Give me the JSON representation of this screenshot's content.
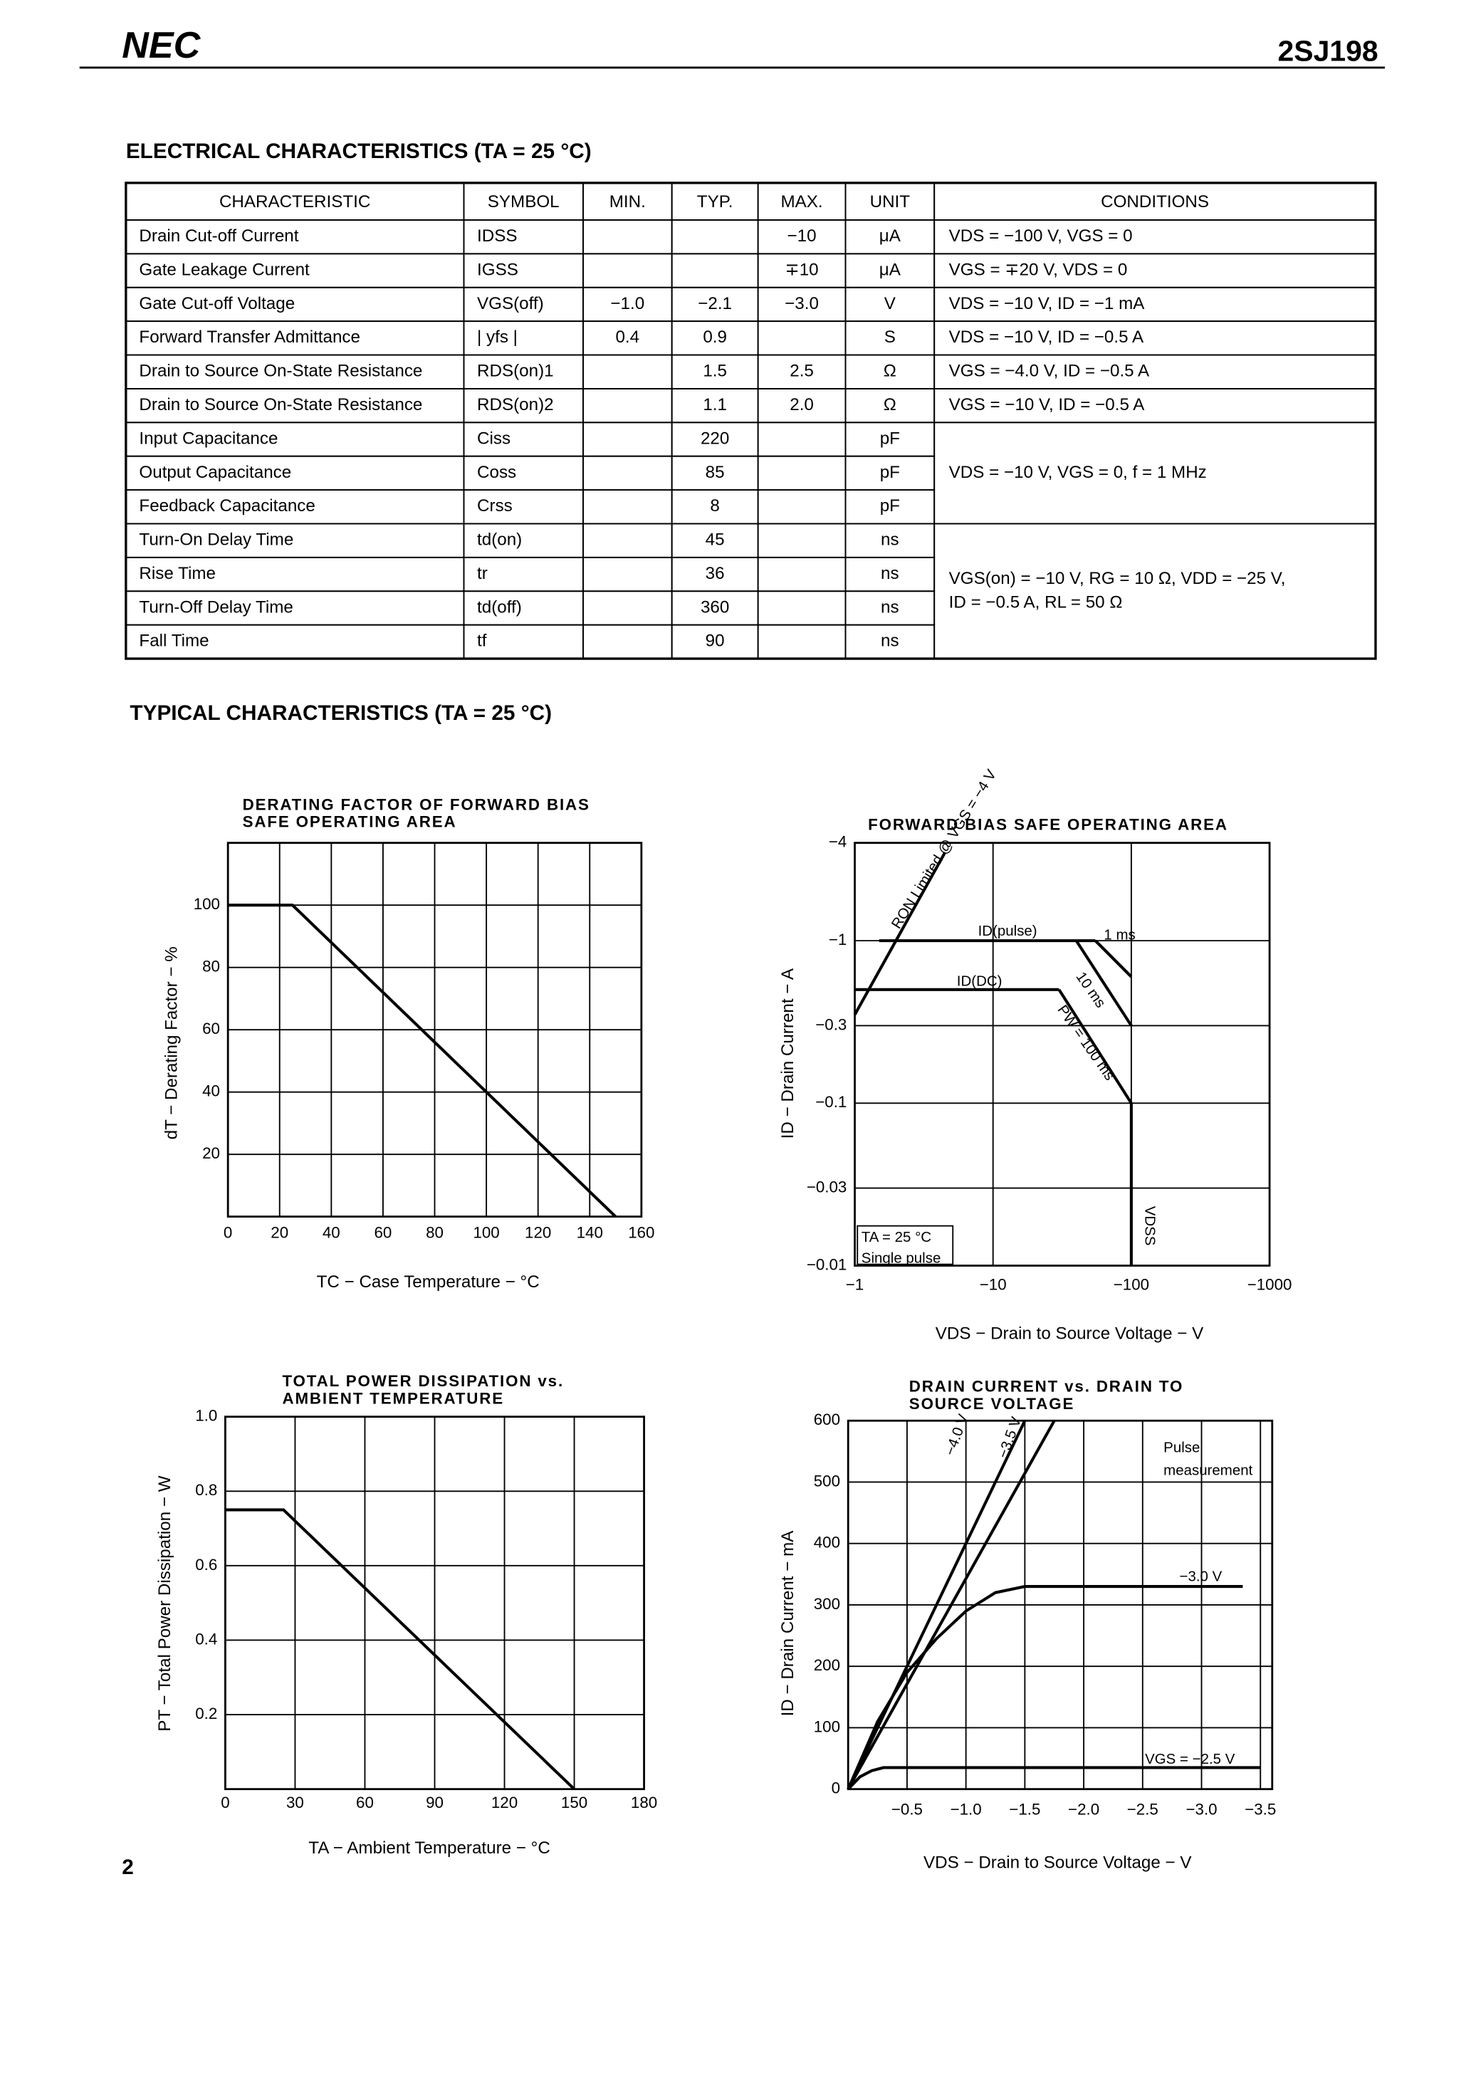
{
  "header": {
    "logo": "NEC",
    "part": "2SJ198"
  },
  "electrical": {
    "title": "ELECTRICAL CHARACTERISTICS (TA = 25 °C)",
    "columns": [
      "CHARACTERISTIC",
      "SYMBOL",
      "MIN.",
      "TYP.",
      "MAX.",
      "UNIT",
      "CONDITIONS"
    ],
    "rows": [
      [
        "Drain Cut-off Current",
        "IDSS",
        null,
        null,
        "−10",
        "μA"
      ],
      [
        "Gate Leakage Current",
        "IGSS",
        null,
        null,
        "∓10",
        "μA"
      ],
      [
        "Gate Cut-off Voltage",
        "VGS(off)",
        "−1.0",
        "−2.1",
        "−3.0",
        "V"
      ],
      [
        "Forward Transfer Admittance",
        "| yfs |",
        "0.4",
        "0.9",
        null,
        "S"
      ],
      [
        "Drain to Source On-State Resistance",
        "RDS(on)1",
        null,
        "1.5",
        "2.5",
        "Ω"
      ],
      [
        "Drain to Source On-State Resistance",
        "RDS(on)2",
        null,
        "1.1",
        "2.0",
        "Ω"
      ],
      [
        "Input Capacitance",
        "Ciss",
        null,
        "220",
        null,
        "pF"
      ],
      [
        "Output Capacitance",
        "Coss",
        null,
        "85",
        null,
        "pF"
      ],
      [
        "Feedback Capacitance",
        "Crss",
        null,
        "8",
        null,
        "pF"
      ],
      [
        "Turn-On Delay Time",
        "td(on)",
        null,
        "45",
        null,
        "ns"
      ],
      [
        "Rise Time",
        "tr",
        null,
        "36",
        null,
        "ns"
      ],
      [
        "Turn-Off Delay Time",
        "td(off)",
        null,
        "360",
        null,
        "ns"
      ],
      [
        "Fall Time",
        "tf",
        null,
        "90",
        null,
        "ns"
      ]
    ],
    "conditions": [
      "VDS = −100 V, VGS = 0",
      "VGS = ∓20 V, VDS = 0",
      "VDS = −10 V, ID = −1 mA",
      "VDS = −10 V, ID = −0.5 A",
      "VGS = −4.0 V, ID = −0.5 A",
      "VGS = −10 V, ID = −0.5 A",
      "VDS = −10 V, VGS = 0, f = 1 MHz",
      [
        "VGS(on) = −10 V, RG = 10 Ω, VDD = −25 V,",
        "ID = −0.5 A, RL = 50 Ω"
      ]
    ]
  },
  "typical_title": "TYPICAL CHARACTERISTICS (TA = 25 °C)",
  "page_number": "2",
  "chart_data": [
    {
      "type": "line",
      "title": [
        "DERATING FACTOR OF FORWARD BIAS",
        "SAFE OPERATING AREA"
      ],
      "xlabel": "TC − Case Temperature − °C",
      "ylabel": "dT − Derating Factor − %",
      "xlim": [
        0,
        160
      ],
      "ylim": [
        0,
        120
      ],
      "xticks": [
        0,
        20,
        40,
        60,
        80,
        100,
        120,
        140,
        160
      ],
      "yticks": [
        20,
        40,
        60,
        80,
        100
      ],
      "grid": true,
      "series": [
        {
          "color": "#000000",
          "x": [
            0,
            25,
            150
          ],
          "values": [
            100,
            100,
            0
          ]
        }
      ]
    },
    {
      "type": "line",
      "title": [
        "FORWARD BIAS SAFE OPERATING AREA"
      ],
      "xlabel": "VDS − Drain to Source Voltage − V",
      "ylabel": "ID − Drain Current − A",
      "log_scale": true,
      "xlim": [
        -1,
        -1000
      ],
      "ylim": [
        -0.01,
        -4
      ],
      "xticks": [
        {
          "value": -1,
          "label": "−1"
        },
        {
          "value": -10,
          "label": "−10"
        },
        {
          "value": -100,
          "label": "−100"
        },
        {
          "value": -1000,
          "label": "−1000"
        }
      ],
      "yticks": [
        {
          "value": -0.01,
          "label": "−0.01"
        },
        {
          "value": -0.03,
          "label": "−0.03"
        },
        {
          "value": -0.1,
          "label": "−0.1"
        },
        {
          "value": -0.3,
          "label": "−0.3"
        },
        {
          "value": -1,
          "label": "−1"
        },
        {
          "value": -4,
          "label": "−4"
        }
      ],
      "grid": true,
      "series": [
        {
          "name": "RON Limited @ VGS = −4 V",
          "color": "#000000",
          "x": [
            -1,
            -4.5
          ],
          "values": [
            -0.35,
            -3.5
          ]
        },
        {
          "name": "ID(pulse)",
          "color": "#000000",
          "x": [
            -1.5,
            -55
          ],
          "values": [
            -1,
            -1
          ]
        },
        {
          "name": "1 ms",
          "color": "#000000",
          "x": [
            -55,
            -100
          ],
          "values": [
            -1,
            -0.6
          ]
        },
        {
          "name": "10 ms",
          "color": "#000000",
          "x": [
            -40,
            -100
          ],
          "values": [
            -1,
            -0.3
          ]
        },
        {
          "name": "ID(DC)",
          "color": "#000000",
          "x": [
            -1,
            -30
          ],
          "values": [
            -0.5,
            -0.5
          ]
        },
        {
          "name": "PW = 100 ms",
          "color": "#000000",
          "x": [
            -30,
            -100
          ],
          "values": [
            -0.5,
            -0.1
          ]
        },
        {
          "name": "VDSS",
          "color": "#000000",
          "x": [
            -100,
            -100
          ],
          "values": [
            -0.1,
            -0.01
          ]
        }
      ],
      "annotations": [
        "TA = 25 °C",
        "Single pulse"
      ]
    },
    {
      "type": "line",
      "title": [
        "TOTAL POWER DISSIPATION vs.",
        "AMBIENT TEMPERATURE"
      ],
      "xlabel": "TA − Ambient Temperature − °C",
      "ylabel": "PT − Total Power Dissipation − W",
      "xlim": [
        0,
        180
      ],
      "ylim": [
        0,
        1.0
      ],
      "xticks": [
        0,
        30,
        60,
        90,
        120,
        150,
        180
      ],
      "yticks": [
        0.2,
        0.4,
        0.6,
        0.8,
        {
          "value": 1,
          "label": "1.0"
        }
      ],
      "grid": true,
      "series": [
        {
          "color": "#000000",
          "x": [
            0,
            25,
            150
          ],
          "values": [
            0.75,
            0.75,
            0
          ]
        }
      ]
    },
    {
      "type": "line",
      "title": [
        "DRAIN CURRENT vs. DRAIN TO",
        "SOURCE VOLTAGE"
      ],
      "xlabel": "VDS − Drain to Source Voltage − V",
      "ylabel": "ID − Drain Current − mA",
      "xlim": [
        0,
        -3.6
      ],
      "ylim": [
        0,
        600
      ],
      "xticks": [
        {
          "value": -0.5,
          "label": "−0.5"
        },
        {
          "value": -1,
          "label": "−1.0"
        },
        {
          "value": -1.5,
          "label": "−1.5"
        },
        {
          "value": -2,
          "label": "−2.0"
        },
        {
          "value": -2.5,
          "label": "−2.5"
        },
        {
          "value": -3,
          "label": "−3.0"
        },
        {
          "value": -3.5,
          "label": "−3.5"
        }
      ],
      "yticks": [
        0,
        100,
        200,
        300,
        400,
        500,
        600
      ],
      "grid": true,
      "series": [
        {
          "name": "−4.0 V",
          "color": "#000000",
          "x": [
            0,
            -1.5
          ],
          "values": [
            0,
            600
          ]
        },
        {
          "name": "−3.5 V",
          "color": "#000000",
          "x": [
            0,
            -1.75
          ],
          "values": [
            0,
            600
          ]
        },
        {
          "name": "−3.0 V",
          "color": "#000000",
          "x": [
            0,
            -0.25,
            -0.5,
            -0.75,
            -1,
            -1.25,
            -1.5,
            -3.35
          ],
          "values": [
            0,
            110,
            190,
            245,
            290,
            320,
            330,
            330
          ]
        },
        {
          "name": "VGS = −2.5 V",
          "color": "#000000",
          "x": [
            0,
            -0.1,
            -0.2,
            -0.3,
            -3.5
          ],
          "values": [
            0,
            20,
            30,
            35,
            35
          ]
        }
      ],
      "annotations": [
        "Pulse",
        "measurement"
      ]
    }
  ]
}
